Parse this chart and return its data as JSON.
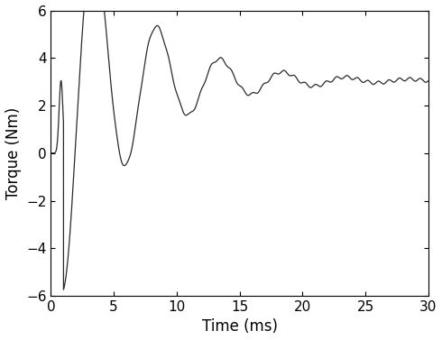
{
  "title": "",
  "xlabel": "Time (ms)",
  "ylabel": "Torque (Nm)",
  "xlim": [
    0,
    30
  ],
  "ylim": [
    -6,
    6
  ],
  "xticks": [
    0,
    5,
    10,
    15,
    20,
    25,
    30
  ],
  "yticks": [
    -6,
    -4,
    -2,
    0,
    2,
    4,
    6
  ],
  "line_color": "#2a2a2a",
  "line_width": 0.9,
  "background_color": "#ffffff",
  "steady_state_torque": 3.05,
  "tau_decay": 0.0055,
  "osc_freq_hz": 200.0,
  "initial_amplitude": 8.8,
  "startup_time": 0.001,
  "ripple_amplitude": 0.07,
  "ripple_freq": 1200.0,
  "xlabel_fontsize": 12,
  "ylabel_fontsize": 12,
  "tick_fontsize": 11
}
